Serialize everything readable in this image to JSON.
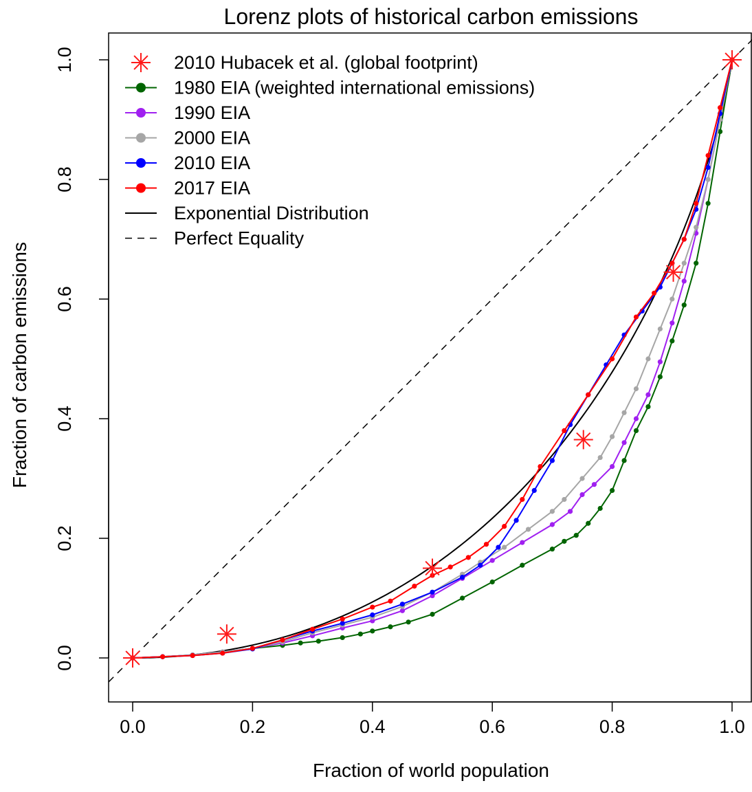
{
  "chart_data": {
    "type": "line",
    "title": "Lorenz plots of historical carbon emissions",
    "xlabel": "Fraction of world population",
    "ylabel": "Fraction of carbon emissions",
    "xlim": [
      0,
      1
    ],
    "ylim": [
      0,
      1
    ],
    "xticks": [
      "0.0",
      "0.2",
      "0.4",
      "0.6",
      "0.8",
      "1.0"
    ],
    "yticks": [
      "0.0",
      "0.2",
      "0.4",
      "0.6",
      "0.8",
      "1.0"
    ],
    "grid": false,
    "legend_position": "top-left",
    "series": [
      {
        "name": "2010 Hubacek et al. (global footprint)",
        "color": "#ff1a1a",
        "style": "asterisk-points",
        "x": [
          0.0,
          0.157,
          0.5,
          0.752,
          0.902,
          1.0
        ],
        "y": [
          0.0,
          0.04,
          0.15,
          0.365,
          0.645,
          1.0
        ]
      },
      {
        "name": "1980 EIA (weighted international emissions)",
        "color": "#006400",
        "style": "line-points",
        "x": [
          0.0,
          0.05,
          0.1,
          0.15,
          0.2,
          0.25,
          0.28,
          0.31,
          0.35,
          0.38,
          0.4,
          0.43,
          0.46,
          0.5,
          0.55,
          0.6,
          0.65,
          0.7,
          0.72,
          0.74,
          0.76,
          0.78,
          0.8,
          0.82,
          0.84,
          0.86,
          0.88,
          0.9,
          0.92,
          0.94,
          0.96,
          0.98,
          1.0
        ],
        "y": [
          0.0,
          0.002,
          0.005,
          0.01,
          0.016,
          0.021,
          0.025,
          0.028,
          0.034,
          0.04,
          0.045,
          0.052,
          0.06,
          0.073,
          0.1,
          0.127,
          0.155,
          0.182,
          0.195,
          0.205,
          0.225,
          0.25,
          0.28,
          0.33,
          0.38,
          0.42,
          0.47,
          0.53,
          0.59,
          0.66,
          0.76,
          0.88,
          1.0
        ]
      },
      {
        "name": "1990 EIA",
        "color": "#a020f0",
        "style": "line-points",
        "x": [
          0.0,
          0.05,
          0.1,
          0.15,
          0.2,
          0.25,
          0.3,
          0.35,
          0.4,
          0.45,
          0.5,
          0.55,
          0.6,
          0.65,
          0.7,
          0.73,
          0.75,
          0.77,
          0.8,
          0.82,
          0.84,
          0.86,
          0.88,
          0.9,
          0.92,
          0.94,
          0.96,
          0.98,
          1.0
        ],
        "y": [
          0.0,
          0.002,
          0.005,
          0.01,
          0.016,
          0.025,
          0.037,
          0.05,
          0.062,
          0.079,
          0.104,
          0.133,
          0.163,
          0.193,
          0.223,
          0.245,
          0.273,
          0.29,
          0.32,
          0.36,
          0.4,
          0.44,
          0.495,
          0.56,
          0.63,
          0.71,
          0.8,
          0.9,
          1.0
        ]
      },
      {
        "name": "2000 EIA",
        "color": "#a6a6a6",
        "style": "line-points",
        "x": [
          0.0,
          0.05,
          0.1,
          0.15,
          0.2,
          0.25,
          0.3,
          0.35,
          0.4,
          0.45,
          0.5,
          0.55,
          0.58,
          0.62,
          0.66,
          0.7,
          0.72,
          0.75,
          0.78,
          0.8,
          0.82,
          0.84,
          0.86,
          0.88,
          0.9,
          0.92,
          0.94,
          0.96,
          0.98,
          1.0
        ],
        "y": [
          0.0,
          0.002,
          0.005,
          0.01,
          0.016,
          0.027,
          0.042,
          0.055,
          0.068,
          0.086,
          0.11,
          0.14,
          0.16,
          0.185,
          0.215,
          0.245,
          0.265,
          0.3,
          0.335,
          0.37,
          0.41,
          0.45,
          0.5,
          0.55,
          0.6,
          0.66,
          0.72,
          0.8,
          0.9,
          1.0
        ]
      },
      {
        "name": "2010 EIA",
        "color": "#0000ff",
        "style": "line-points",
        "x": [
          0.0,
          0.05,
          0.1,
          0.15,
          0.2,
          0.25,
          0.3,
          0.35,
          0.4,
          0.45,
          0.5,
          0.55,
          0.58,
          0.61,
          0.64,
          0.67,
          0.7,
          0.73,
          0.76,
          0.79,
          0.82,
          0.85,
          0.88,
          0.9,
          0.92,
          0.94,
          0.96,
          0.98,
          1.0
        ],
        "y": [
          0.0,
          0.002,
          0.004,
          0.008,
          0.015,
          0.03,
          0.045,
          0.058,
          0.072,
          0.09,
          0.11,
          0.135,
          0.155,
          0.185,
          0.23,
          0.28,
          0.33,
          0.39,
          0.44,
          0.49,
          0.54,
          0.58,
          0.62,
          0.66,
          0.7,
          0.75,
          0.82,
          0.91,
          1.0
        ]
      },
      {
        "name": "2017 EIA",
        "color": "#ff0000",
        "style": "line-points",
        "x": [
          0.0,
          0.05,
          0.1,
          0.15,
          0.2,
          0.25,
          0.3,
          0.35,
          0.4,
          0.43,
          0.47,
          0.5,
          0.53,
          0.56,
          0.59,
          0.62,
          0.65,
          0.68,
          0.72,
          0.76,
          0.8,
          0.84,
          0.87,
          0.9,
          0.92,
          0.94,
          0.96,
          0.98,
          1.0
        ],
        "y": [
          0.0,
          0.002,
          0.004,
          0.008,
          0.016,
          0.03,
          0.048,
          0.065,
          0.085,
          0.095,
          0.12,
          0.138,
          0.152,
          0.168,
          0.19,
          0.22,
          0.265,
          0.32,
          0.38,
          0.44,
          0.5,
          0.57,
          0.61,
          0.66,
          0.7,
          0.76,
          0.84,
          0.92,
          1.0
        ]
      },
      {
        "name": "Exponential Distribution",
        "color": "#000000",
        "style": "solid-line",
        "x": [],
        "y": []
      },
      {
        "name": "Perfect Equality",
        "color": "#000000",
        "style": "dashed-line",
        "x": [
          0,
          1
        ],
        "y": [
          0,
          1
        ]
      }
    ]
  }
}
